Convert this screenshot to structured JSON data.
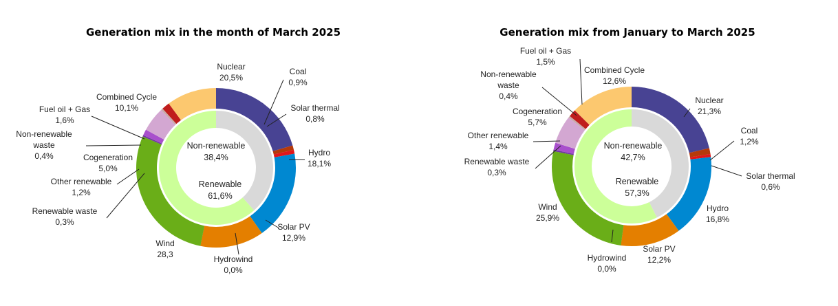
{
  "chart_data": [
    {
      "type": "pie",
      "title": "Generation mix in the month of March 2025",
      "inner_ring": {
        "categories": [
          "Non-renewable",
          "Renewable"
        ],
        "values": [
          "38,4%",
          "61,6%"
        ],
        "numeric": [
          38.4,
          61.6
        ],
        "colors": [
          "#d9d9d9",
          "#ccff99"
        ]
      },
      "outer_ring": {
        "categories": [
          "Nuclear",
          "Coal",
          "Solar thermal",
          "Hydro",
          "Solar PV",
          "Hydrowind",
          "Wind",
          "Renewable waste",
          "Other renewable",
          "Cogeneration",
          "Non-renewable waste",
          "Fuel oil + Gas",
          "Combined Cycle"
        ],
        "values": [
          "20,5%",
          "0,9%",
          "0,8%",
          "18,1%",
          "12,9%",
          "0,0%",
          "28,3",
          "0,3%",
          "1,2%",
          "5,0%",
          "0,4%",
          "1,6%",
          "10,1%"
        ],
        "numeric": [
          20.5,
          0.9,
          0.8,
          18.1,
          12.9,
          0.0,
          28.3,
          0.3,
          1.2,
          5.0,
          0.4,
          1.6,
          10.1
        ],
        "colors": [
          "#484393",
          "#b5390b",
          "#e0161b",
          "#0088d1",
          "#e47f00",
          "#1d5b27",
          "#6aae18",
          "#6e37a0",
          "#a84fcc",
          "#d3a7d2",
          "#c9a9a9",
          "#c01d1d",
          "#fcc86f"
        ]
      }
    },
    {
      "type": "pie",
      "title": "Generation mix from January to March 2025",
      "inner_ring": {
        "categories": [
          "Non-renewable",
          "Renewable"
        ],
        "values": [
          "42,7%",
          "57,3%"
        ],
        "numeric": [
          42.7,
          57.3
        ],
        "colors": [
          "#d9d9d9",
          "#ccff99"
        ]
      },
      "outer_ring": {
        "categories": [
          "Nuclear",
          "Coal",
          "Solar thermal",
          "Hydro",
          "Solar PV",
          "Hydrowind",
          "Wind",
          "Renewable waste",
          "Other renewable",
          "Cogeneration",
          "Non-renewable waste",
          "Fuel oil + Gas",
          "Combined Cycle"
        ],
        "values": [
          "21,3%",
          "1,2%",
          "0,6%",
          "16,8%",
          "12,2%",
          "0,0%",
          "25,9%",
          "0,3%",
          "1,4%",
          "5,7%",
          "0,4%",
          "1,5%",
          "12,6%"
        ],
        "numeric": [
          21.3,
          1.2,
          0.6,
          16.8,
          12.2,
          0.0,
          25.9,
          0.3,
          1.4,
          5.7,
          0.4,
          1.5,
          12.6
        ],
        "colors": [
          "#484393",
          "#b5390b",
          "#e0161b",
          "#0088d1",
          "#e47f00",
          "#1d5b27",
          "#6aae18",
          "#6e37a0",
          "#a84fcc",
          "#d3a7d2",
          "#c9a9a9",
          "#c01d1d",
          "#fcc86f"
        ]
      }
    }
  ]
}
